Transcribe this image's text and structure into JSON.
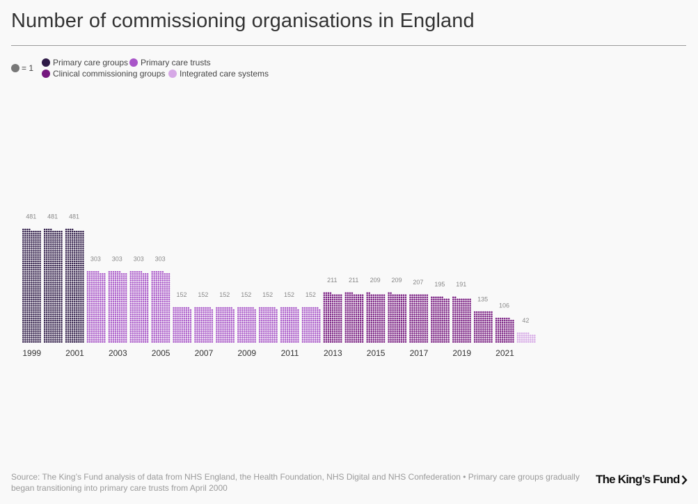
{
  "title": "Number of commissioning organisations in England",
  "legend": {
    "unit_label": "= 1",
    "unit_color": "#787878",
    "items": [
      {
        "label": "Primary care groups",
        "color": "#2e1a47"
      },
      {
        "label": "Primary care trusts",
        "color": "#a855c8"
      },
      {
        "label": "Clinical commissioning groups",
        "color": "#76187f"
      },
      {
        "label": "Integrated care systems",
        "color": "#d6a8e6"
      }
    ]
  },
  "chart_data": {
    "type": "bar",
    "title": "Number of commissioning organisations in England",
    "xlabel": "",
    "ylabel": "",
    "grid": false,
    "legend_position": "top-left",
    "categories": [
      "1999",
      "2000",
      "2001",
      "2002",
      "2003",
      "2004",
      "2005",
      "2006",
      "2007",
      "2008",
      "2009",
      "2010",
      "2011",
      "2012",
      "2013",
      "2014",
      "2015",
      "2016",
      "2017",
      "2018",
      "2019",
      "2020",
      "2021",
      "2022"
    ],
    "values": [
      481,
      481,
      481,
      303,
      303,
      303,
      303,
      152,
      152,
      152,
      152,
      152,
      152,
      152,
      211,
      211,
      209,
      209,
      207,
      195,
      191,
      135,
      106,
      42
    ],
    "series_index": [
      0,
      0,
      0,
      1,
      1,
      1,
      1,
      1,
      1,
      1,
      1,
      1,
      1,
      1,
      2,
      2,
      2,
      2,
      2,
      2,
      2,
      2,
      2,
      3
    ],
    "series": [
      {
        "name": "Primary care groups",
        "years": [
          "1999",
          "2000",
          "2001"
        ]
      },
      {
        "name": "Primary care trusts",
        "years": [
          "2002",
          "2003",
          "2004",
          "2005",
          "2006",
          "2007",
          "2008",
          "2009",
          "2010",
          "2011",
          "2012"
        ]
      },
      {
        "name": "Clinical commissioning groups",
        "years": [
          "2013",
          "2014",
          "2015",
          "2016",
          "2017",
          "2018",
          "2019",
          "2020",
          "2021"
        ]
      },
      {
        "name": "Integrated care systems",
        "years": [
          "2022"
        ]
      }
    ],
    "tick_labels": [
      "1999",
      "2001",
      "2003",
      "2005",
      "2007",
      "2009",
      "2011",
      "2013",
      "2015",
      "2017",
      "2019",
      "2021"
    ],
    "ylim": [
      0,
      481
    ]
  },
  "source": "Source: The King’s Fund analysis of data from NHS England, the Health Foundation, NHS Digital and NHS Confederation • Primary care groups gradually began transitioning into primary care trusts from April 2000",
  "logo": {
    "text": "The King’s Fund",
    "icon": "chevron-right-icon"
  }
}
